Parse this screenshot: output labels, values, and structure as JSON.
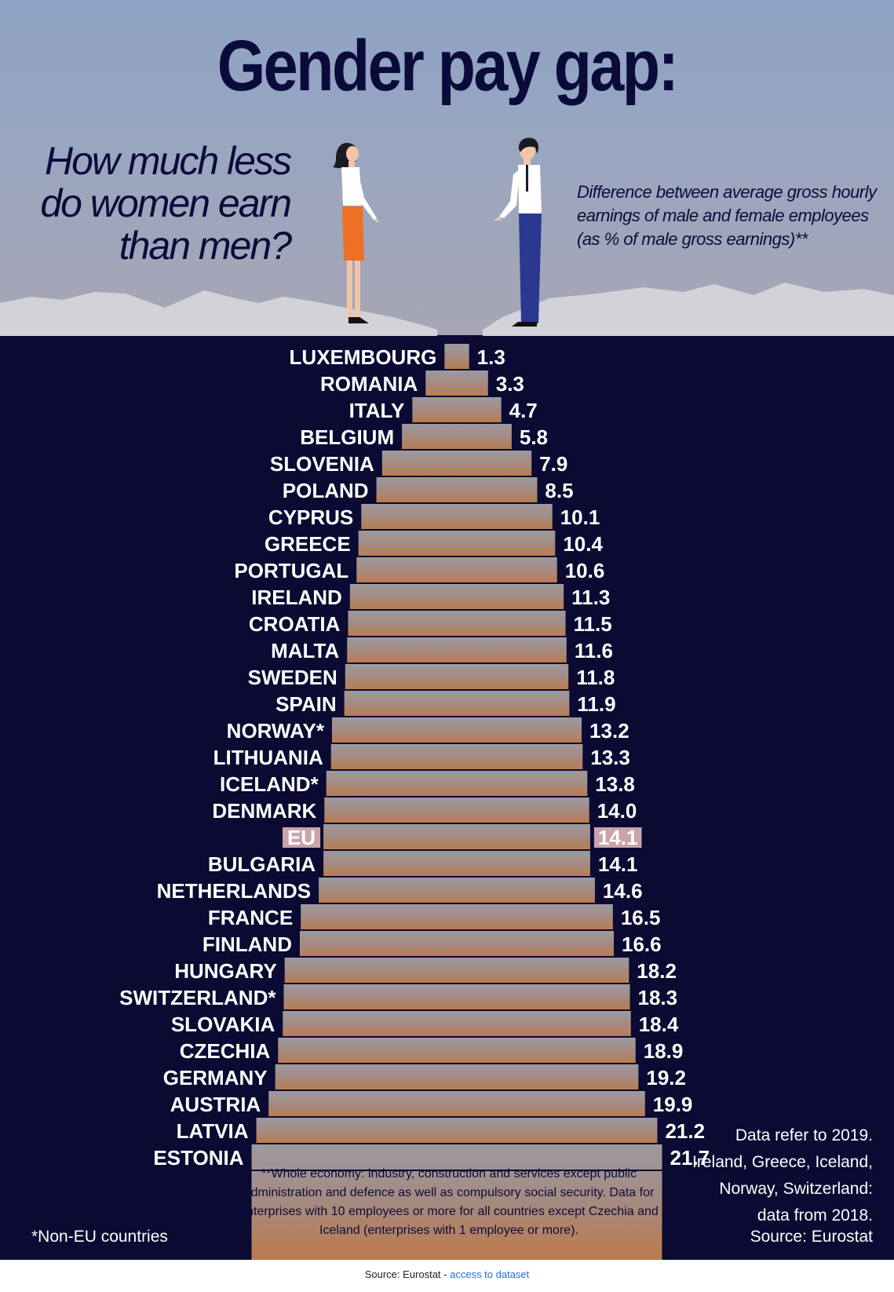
{
  "header": {
    "title": "Gender pay gap:",
    "question": "How much less do women earn than men?",
    "definition": "Difference between average gross hourly earnings of male and female employees (as % of male gross earnings)**"
  },
  "chart_data": {
    "type": "bar",
    "title": "Gender pay gap:",
    "subtitle": "How much less do women earn than men?",
    "categories": [
      "LUXEMBOURG",
      "ROMANIA",
      "ITALY",
      "BELGIUM",
      "SLOVENIA",
      "POLAND",
      "CYPRUS",
      "GREECE",
      "PORTUGAL",
      "IRELAND",
      "CROATIA",
      "MALTA",
      "SWEDEN",
      "SPAIN",
      "NORWAY*",
      "LITHUANIA",
      "ICELAND*",
      "DENMARK",
      "EU",
      "BULGARIA",
      "NETHERLANDS",
      "FRANCE",
      "FINLAND",
      "HUNGARY",
      "SWITZERLAND*",
      "SLOVAKIA",
      "CZECHIA",
      "GERMANY",
      "AUSTRIA",
      "LATVIA",
      "ESTONIA"
    ],
    "values": [
      1.3,
      3.3,
      4.7,
      5.8,
      7.9,
      8.5,
      10.1,
      10.4,
      10.6,
      11.3,
      11.5,
      11.6,
      11.8,
      11.9,
      13.2,
      13.3,
      13.8,
      14.0,
      14.1,
      14.1,
      14.6,
      16.5,
      16.6,
      18.2,
      18.3,
      18.4,
      18.9,
      19.2,
      19.9,
      21.2,
      21.7
    ],
    "labels": [
      "1.3",
      "3.3",
      "4.7",
      "5.8",
      "7.9",
      "8.5",
      "10.1",
      "10.4",
      "10.6",
      "11.3",
      "11.5",
      "11.6",
      "11.8",
      "11.9",
      "13.2",
      "13.3",
      "13.8",
      "14.0",
      "14.1",
      "14.1",
      "14.6",
      "16.5",
      "16.6",
      "18.2",
      "18.3",
      "18.4",
      "18.9",
      "19.2",
      "19.9",
      "21.2",
      "21.7"
    ],
    "highlight": "EU",
    "orientation": "symmetric-horizontal",
    "unit": "% of male gross earnings"
  },
  "notes": {
    "methodology": "**Whole economy: industry, construction and services except public administration and defence as well as compulsory social security. Data for enterprises with 10 employees or more for all countries except Czechia and Iceland (enterprises with 1 employee or more).",
    "data_year": "Data refer to 2019.",
    "exceptions": "Ireland, Greece, Iceland, Norway, Switzerland: data from 2018.",
    "source": "Source: Eurostat",
    "non_eu": "*Non-EU countries"
  },
  "footer": {
    "source_prefix": "Source: Eurostat - ",
    "link_text": "access to dataset"
  },
  "colors": {
    "background_dark": "#0a0a33",
    "text_dark": "#0b0b3b",
    "highlight_box": "#c9a4ab",
    "bar_top": "#9c9aa0",
    "bar_bottom": "#bc7a4a",
    "woman_skirt": "#ee7024",
    "man_trousers": "#2a3890"
  }
}
